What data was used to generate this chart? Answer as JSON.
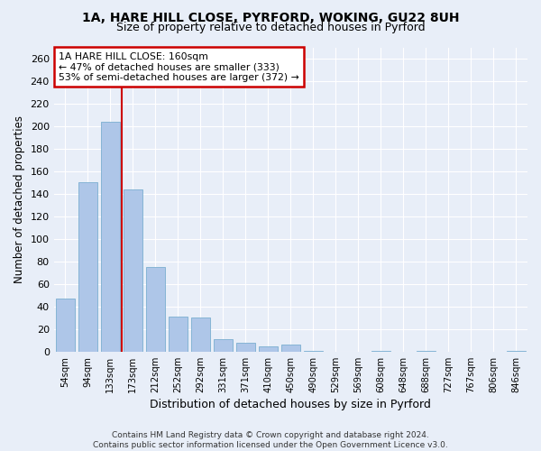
{
  "title1": "1A, HARE HILL CLOSE, PYRFORD, WOKING, GU22 8UH",
  "title2": "Size of property relative to detached houses in Pyrford",
  "xlabel": "Distribution of detached houses by size in Pyrford",
  "ylabel": "Number of detached properties",
  "categories": [
    "54sqm",
    "94sqm",
    "133sqm",
    "173sqm",
    "212sqm",
    "252sqm",
    "292sqm",
    "331sqm",
    "371sqm",
    "410sqm",
    "450sqm",
    "490sqm",
    "529sqm",
    "569sqm",
    "608sqm",
    "648sqm",
    "688sqm",
    "727sqm",
    "767sqm",
    "806sqm",
    "846sqm"
  ],
  "values": [
    47,
    150,
    204,
    144,
    75,
    31,
    30,
    11,
    8,
    5,
    6,
    1,
    0,
    0,
    1,
    0,
    1,
    0,
    0,
    0,
    1
  ],
  "bar_color": "#aec6e8",
  "bar_edge_color": "#7aaed0",
  "vline_color": "#cc0000",
  "annotation_text": "1A HARE HILL CLOSE: 160sqm\n← 47% of detached houses are smaller (333)\n53% of semi-detached houses are larger (372) →",
  "annotation_box_color": "#cc0000",
  "bg_color": "#e8eef8",
  "grid_color": "#ffffff",
  "yticks": [
    0,
    20,
    40,
    60,
    80,
    100,
    120,
    140,
    160,
    180,
    200,
    220,
    240,
    260
  ],
  "ylim": [
    0,
    270
  ],
  "footer": "Contains HM Land Registry data © Crown copyright and database right 2024.\nContains public sector information licensed under the Open Government Licence v3.0."
}
